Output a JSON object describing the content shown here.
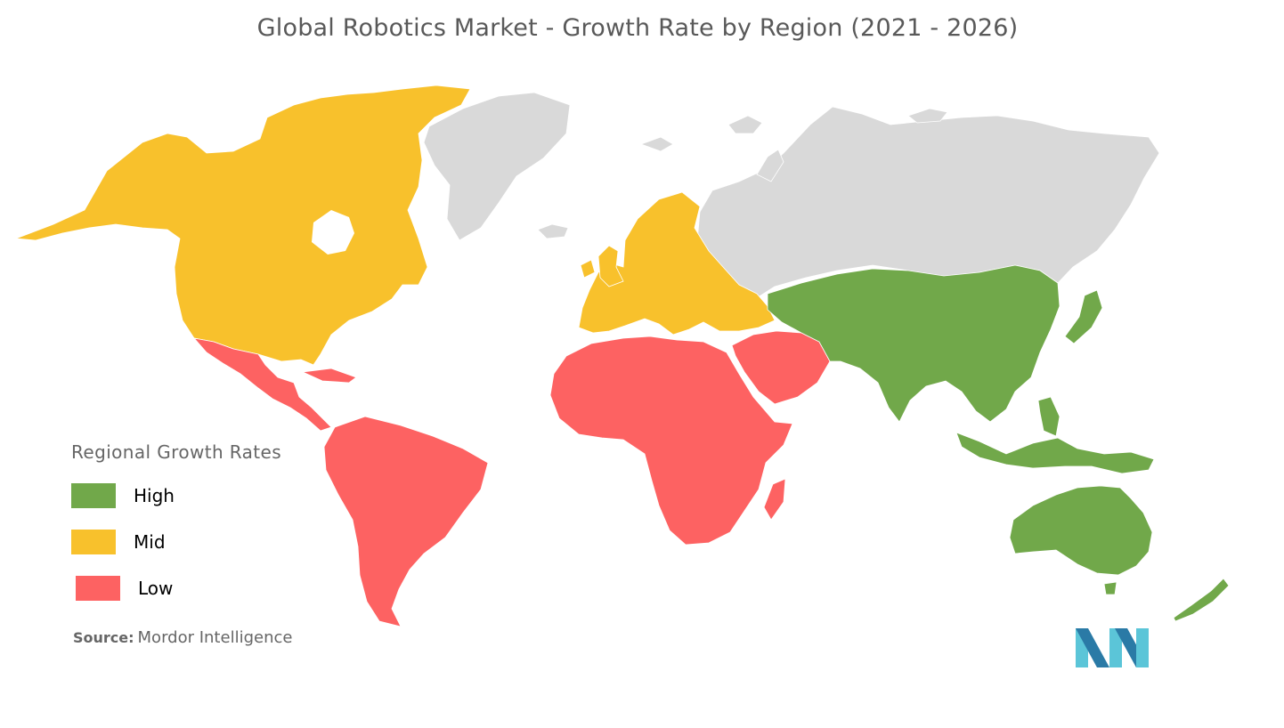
{
  "title": "Global Robotics Market - Growth Rate by Region (2021 - 2026)",
  "legend": {
    "title": "Regional Growth Rates",
    "items": [
      {
        "label": "High",
        "color": "#71a84a"
      },
      {
        "label": "Mid",
        "color": "#f8c12c"
      },
      {
        "label": "Low",
        "color": "#fd6262"
      }
    ]
  },
  "source": {
    "label": "Source:",
    "value": "Mordor Intelligence"
  },
  "colors": {
    "no_data": "#d9d9d9",
    "logo_light": "#5bc5d8",
    "logo_dark": "#2a7aa6"
  },
  "regions": [
    {
      "name": "Asia-Pacific",
      "rate": "High"
    },
    {
      "name": "North America",
      "rate": "Mid"
    },
    {
      "name": "Europe",
      "rate": "Mid"
    },
    {
      "name": "Latin America",
      "rate": "Low"
    },
    {
      "name": "Middle East and Africa",
      "rate": "Low"
    }
  ]
}
